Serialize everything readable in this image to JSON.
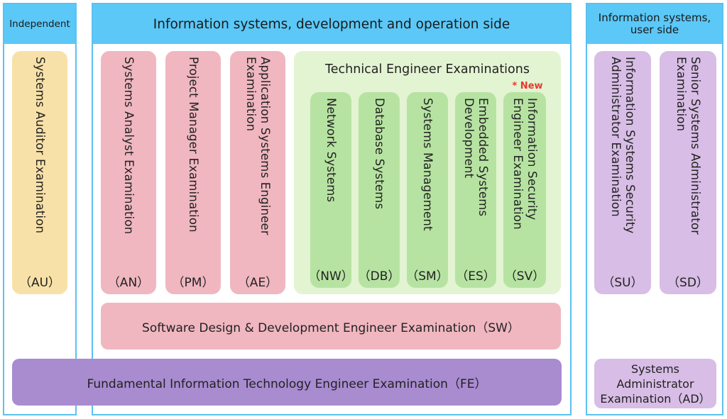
{
  "independent": {
    "header": "Independent",
    "au": {
      "name": "Systems Auditor Examination",
      "code": "（AU）"
    }
  },
  "dev": {
    "header": "Information systems, development and operation side",
    "an": {
      "name": "Systems Analyst Examination",
      "code": "（AN）"
    },
    "pm": {
      "name": "Project Manager Examination",
      "code": "（PM）"
    },
    "ae": {
      "name": "Application Systems Engineer\nExamination",
      "code": "（AE）"
    },
    "tech": {
      "title": "Technical Engineer Examinations",
      "new_label": "* New",
      "nw": {
        "name": "Network Systems",
        "code": "（NW）"
      },
      "db": {
        "name": "Database Systems",
        "code": "（DB）"
      },
      "sm": {
        "name": "Systems Management",
        "code": "（SM）"
      },
      "es": {
        "name": "Embedded Systems\nDevelopment",
        "code": "（ES）"
      },
      "sv": {
        "name": "Information Security\nEngineer Examination",
        "code": "（SV）"
      }
    },
    "sw": "Software Design & Development Engineer Examination（SW）",
    "fe": "Fundamental Information Technology Engineer Examination（FE）"
  },
  "user": {
    "header": "Information systems,\nuser side",
    "su": {
      "name": "Information Systems Security\nAdministrator Examination",
      "code": "（SU）"
    },
    "sd": {
      "name": "Senior Systems Administrator\nExamination",
      "code": "（SD）"
    },
    "ad": "Systems\nAdministrator\nExamination（AD）"
  },
  "colors": {
    "header_blue": "#5bc8f7",
    "yellow": "#f8e1a8",
    "pink": "#f0b7c0",
    "light_green": "#e3f4d2",
    "green": "#b7e3a2",
    "purple": "#d8bde6",
    "dark_purple": "#a98bd0",
    "new_red": "#e8382c"
  }
}
